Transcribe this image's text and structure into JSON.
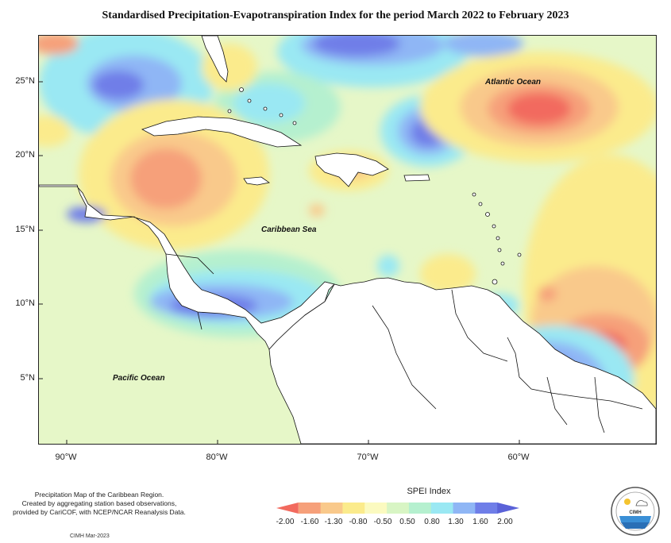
{
  "title": "Standardised Precipitation-Evapotranspiration Index for the period March 2022 to February 2023",
  "map": {
    "lat_labels": [
      "25°N",
      "20°N",
      "15°N",
      "10°N",
      "5°N"
    ],
    "lon_labels": [
      "90°W",
      "80°W",
      "70°W",
      "60°W"
    ],
    "labels": {
      "atlantic": "Atlantic Ocean",
      "caribbean": "Caribbean Sea",
      "pacific": "Pacific Ocean"
    }
  },
  "legend": {
    "title": "SPEI Index",
    "ticks": [
      "-2.00",
      "-1.60",
      "-1.30",
      "-0.80",
      "-0.50",
      "0.50",
      "0.80",
      "1.30",
      "1.60",
      "2.00"
    ],
    "colors": [
      "#f26a5e",
      "#f6a07a",
      "#f9c98b",
      "#fbeb8c",
      "#fbfac0",
      "#d8f5c4",
      "#b5f0cf",
      "#9ae8f3",
      "#8fb6f5",
      "#6f7ee8",
      "#5a62d8"
    ]
  },
  "footer": {
    "note_lines": [
      "Precipitation Map of the Caribbean Region.",
      "Created by aggregating station based observations,",
      "provided by CariCOF, with NCEP/NCAR Reanalysis Data."
    ],
    "credit": "CIMH Mar-2023",
    "logo_text": "CIMH"
  }
}
